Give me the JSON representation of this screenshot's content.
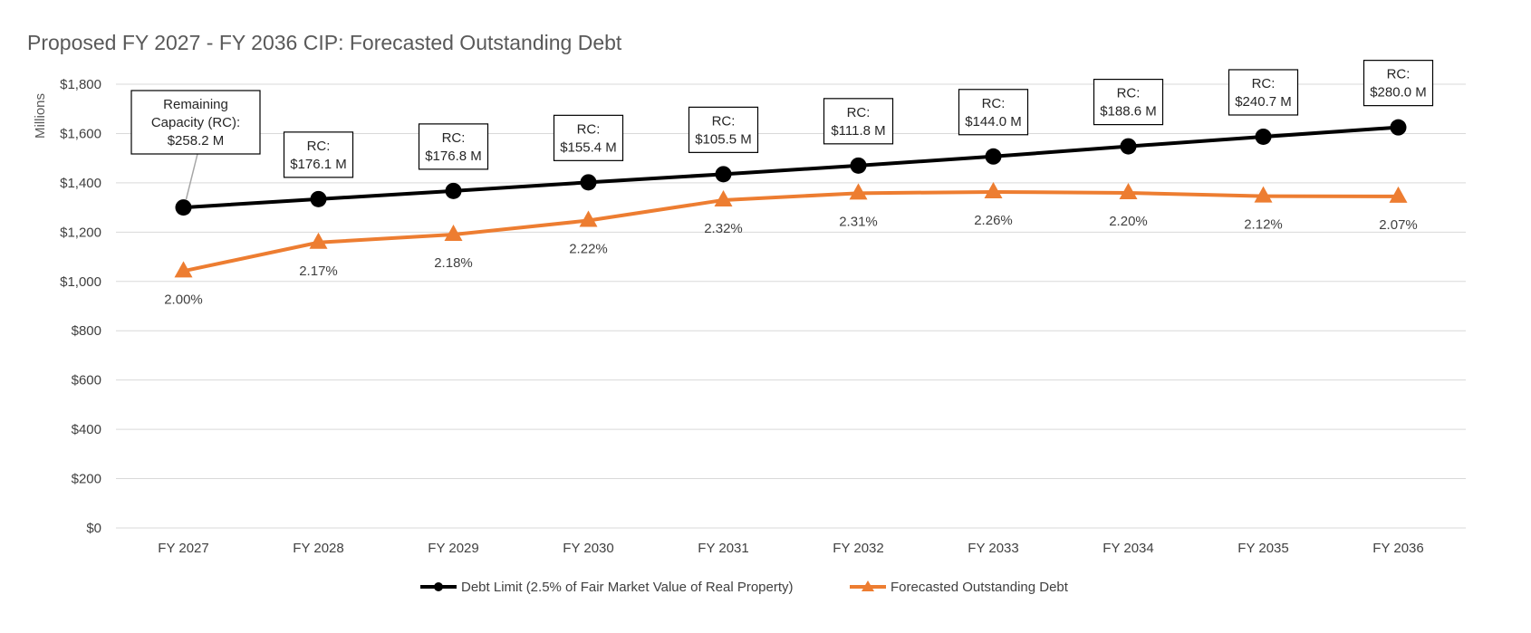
{
  "chart_data": {
    "type": "line",
    "title": "Proposed FY 2027 - FY 2036 CIP: Forecasted Outstanding Debt",
    "ylabel": "Millions",
    "xlabel": "",
    "ylim": [
      0,
      1800
    ],
    "y_ticks": [
      0,
      200,
      400,
      600,
      800,
      1000,
      1200,
      1400,
      1600,
      1800
    ],
    "y_tick_labels": [
      "$0",
      "$200",
      "$400",
      "$600",
      "$800",
      "$1,000",
      "$1,200",
      "$1,400",
      "$1,600",
      "$1,800"
    ],
    "grid": true,
    "legend_position": "bottom",
    "categories": [
      "FY 2027",
      "FY 2028",
      "FY 2029",
      "FY 2030",
      "FY 2031",
      "FY 2032",
      "FY 2033",
      "FY 2034",
      "FY 2035",
      "FY 2036"
    ],
    "series": [
      {
        "name": "Debt Limit (2.5% of Fair Market Value of Real Property)",
        "color": "#000000",
        "marker": "circle",
        "values": [
          1300,
          1334,
          1367,
          1402,
          1435,
          1470,
          1507,
          1548,
          1587,
          1625
        ],
        "labels": [
          [
            "Remaining",
            "Capacity (RC):",
            "$258.2 M"
          ],
          [
            "RC:",
            "$176.1 M"
          ],
          [
            "RC:",
            "$176.8 M"
          ],
          [
            "RC:",
            "$155.4 M"
          ],
          [
            "RC:",
            "$105.5 M"
          ],
          [
            "RC:",
            "$111.8 M"
          ],
          [
            "RC:",
            "$144.0 M"
          ],
          [
            "RC:",
            "$188.6 M"
          ],
          [
            "RC:",
            "$240.7 M"
          ],
          [
            "RC:",
            "$280.0 M"
          ]
        ]
      },
      {
        "name": "Forecasted Outstanding Debt",
        "color": "#ED7D31",
        "marker": "triangle",
        "values": [
          1042,
          1158,
          1190,
          1247,
          1330,
          1358,
          1363,
          1359,
          1346,
          1345
        ],
        "labels": [
          "2.00%",
          "2.17%",
          "2.18%",
          "2.22%",
          "2.32%",
          "2.31%",
          "2.26%",
          "2.20%",
          "2.12%",
          "2.07%"
        ]
      }
    ]
  }
}
